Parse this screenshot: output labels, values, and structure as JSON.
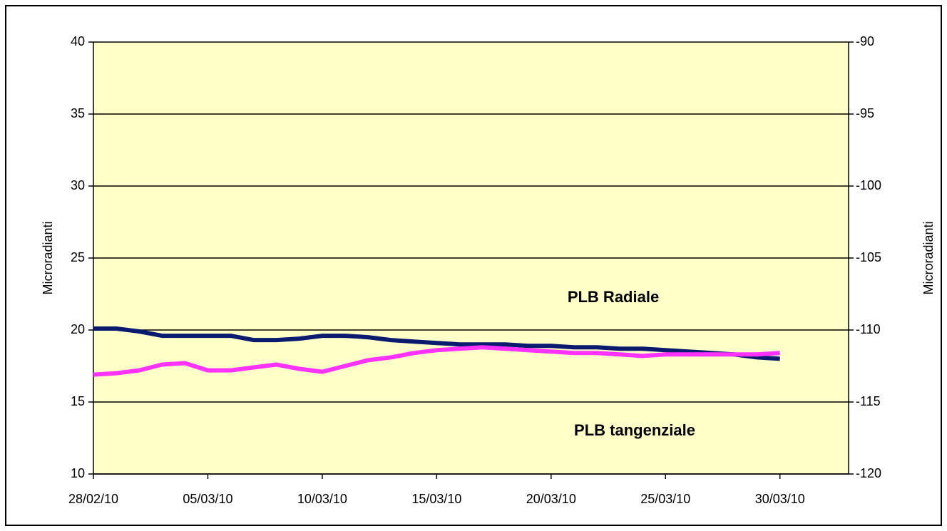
{
  "chart_data": {
    "type": "line",
    "x": [
      "28/02/10",
      "01/03/10",
      "02/03/10",
      "03/03/10",
      "04/03/10",
      "05/03/10",
      "06/03/10",
      "07/03/10",
      "08/03/10",
      "09/03/10",
      "10/03/10",
      "11/03/10",
      "12/03/10",
      "13/03/10",
      "14/03/10",
      "15/03/10",
      "16/03/10",
      "17/03/10",
      "18/03/10",
      "19/03/10",
      "20/03/10",
      "21/03/10",
      "22/03/10",
      "23/03/10",
      "24/03/10",
      "25/03/10",
      "26/03/10",
      "27/03/10",
      "28/03/10",
      "29/03/10",
      "30/03/10"
    ],
    "xlim": [
      "28/02/10",
      "02/04/10"
    ],
    "xticks": [
      "28/02/10",
      "05/03/10",
      "10/03/10",
      "15/03/10",
      "20/03/10",
      "25/03/10",
      "30/03/10"
    ],
    "series": [
      {
        "name": "PLB Radiale",
        "color": "#0a1a6e",
        "values": [
          20.1,
          20.1,
          19.9,
          19.6,
          19.6,
          19.6,
          19.6,
          19.3,
          19.3,
          19.4,
          19.6,
          19.6,
          19.5,
          19.3,
          19.2,
          19.1,
          19.0,
          19.0,
          19.0,
          18.9,
          18.9,
          18.8,
          18.8,
          18.7,
          18.7,
          18.6,
          18.5,
          18.4,
          18.3,
          18.1,
          18.0
        ]
      },
      {
        "name": "PLB tangenziale",
        "color": "#ff33ff",
        "values": [
          16.9,
          17.0,
          17.2,
          17.6,
          17.7,
          17.2,
          17.2,
          17.4,
          17.6,
          17.3,
          17.1,
          17.5,
          17.9,
          18.1,
          18.4,
          18.6,
          18.7,
          18.8,
          18.7,
          18.6,
          18.5,
          18.4,
          18.4,
          18.3,
          18.2,
          18.3,
          18.3,
          18.3,
          18.3,
          18.3,
          18.4
        ]
      }
    ],
    "ylabel": "Microradianti",
    "y2label": "Microradianti",
    "ylim": [
      10,
      40
    ],
    "yticks": [
      10,
      15,
      20,
      25,
      30,
      35,
      40
    ],
    "y2lim": [
      -120,
      -90
    ],
    "y2ticks": [
      -120,
      -115,
      -110,
      -105,
      -100,
      -95,
      -90
    ],
    "grid": true,
    "plot_background": "#ffffc8"
  }
}
